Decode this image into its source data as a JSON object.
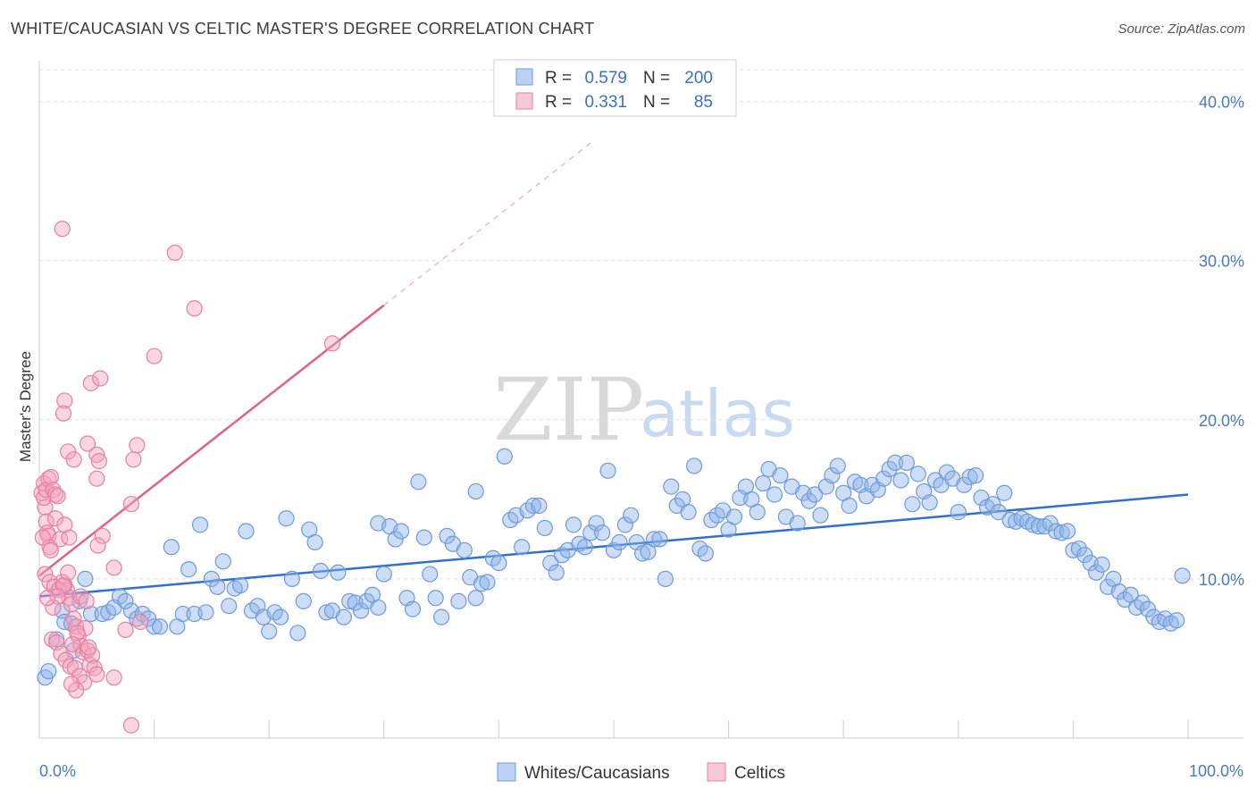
{
  "title": "WHITE/CAUCASIAN VS CELTIC MASTER'S DEGREE CORRELATION CHART",
  "source": "Source: ZipAtlas.com",
  "watermark": {
    "zip": "ZIP",
    "atlas": "atlas"
  },
  "chart_data": {
    "type": "scatter",
    "ylabel": "Master's Degree",
    "xlabel": "",
    "xlim": [
      0,
      100
    ],
    "ylim": [
      0,
      42
    ],
    "x_tick_labels": {
      "left": "0.0%",
      "right": "100.0%"
    },
    "y_ticks": [
      {
        "value": 10,
        "label": "10.0%"
      },
      {
        "value": 20,
        "label": "20.0%"
      },
      {
        "value": 30,
        "label": "30.0%"
      },
      {
        "value": 40,
        "label": "40.0%"
      }
    ],
    "grid": true,
    "legend": {
      "placement": "top-center",
      "entries": [
        {
          "r_label": "R =",
          "r_value": "0.579",
          "n_label": "N =",
          "n_value": "200",
          "color": "#8fb3e8"
        },
        {
          "r_label": "R =",
          "r_value": "0.331",
          "n_label": "N =",
          "n_value": "85",
          "color": "#f2a5bd"
        }
      ]
    },
    "series": [
      {
        "name": "Whites/Caucasians",
        "color": "#8fb3e8",
        "stroke": "#6f9ad8",
        "trend": {
          "x0": 0,
          "y0": 8.9,
          "x1": 100,
          "y1": 15.3,
          "color": "#2e6fd0"
        },
        "points": [
          [
            0.5,
            3.8
          ],
          [
            0.8,
            4.2
          ],
          [
            1.5,
            6.2
          ],
          [
            2,
            8
          ],
          [
            2.2,
            7.3
          ],
          [
            2.8,
            7.2
          ],
          [
            3,
            5.5
          ],
          [
            3.5,
            8.6
          ],
          [
            4,
            10
          ],
          [
            4.5,
            7.8
          ],
          [
            5.5,
            7.8
          ],
          [
            6,
            7.9
          ],
          [
            6.5,
            8.2
          ],
          [
            7,
            8.9
          ],
          [
            7.5,
            8.6
          ],
          [
            8,
            8
          ],
          [
            8.5,
            7.5
          ],
          [
            9,
            7.8
          ],
          [
            9.5,
            7.5
          ],
          [
            10,
            7
          ],
          [
            10.5,
            7
          ],
          [
            11.5,
            12
          ],
          [
            12,
            7
          ],
          [
            12.5,
            7.8
          ],
          [
            13,
            10.6
          ],
          [
            13.5,
            7.8
          ],
          [
            14,
            13.4
          ],
          [
            14.5,
            7.9
          ],
          [
            15,
            10
          ],
          [
            15.5,
            9.5
          ],
          [
            16,
            11.1
          ],
          [
            16.5,
            8.3
          ],
          [
            17,
            9.4
          ],
          [
            17.5,
            9.6
          ],
          [
            18,
            13
          ],
          [
            18.5,
            8
          ],
          [
            19,
            8.3
          ],
          [
            19.5,
            7.6
          ],
          [
            20,
            6.7
          ],
          [
            20.5,
            7.9
          ],
          [
            21,
            7.6
          ],
          [
            21.5,
            13.8
          ],
          [
            22,
            10
          ],
          [
            22.5,
            6.6
          ],
          [
            23,
            8.6
          ],
          [
            23.5,
            13.1
          ],
          [
            24,
            12.3
          ],
          [
            24.5,
            10.5
          ],
          [
            25,
            7.9
          ],
          [
            25.5,
            8
          ],
          [
            26,
            10.4
          ],
          [
            26.5,
            7.6
          ],
          [
            27,
            8.6
          ],
          [
            27.5,
            8.5
          ],
          [
            28,
            8
          ],
          [
            28.5,
            8.6
          ],
          [
            29,
            9
          ],
          [
            29.5,
            13.5
          ],
          [
            30,
            10.3
          ],
          [
            30.5,
            13.3
          ],
          [
            31,
            12.5
          ],
          [
            31.5,
            13
          ],
          [
            32,
            8.8
          ],
          [
            32.5,
            8.1
          ],
          [
            33,
            16.1
          ],
          [
            33.5,
            12.6
          ],
          [
            34,
            10.3
          ],
          [
            34.5,
            8.8
          ],
          [
            35,
            7.6
          ],
          [
            35.5,
            12.7
          ],
          [
            36,
            12.2
          ],
          [
            36.5,
            8.6
          ],
          [
            37,
            11.8
          ],
          [
            37.5,
            10.1
          ],
          [
            38,
            15.5
          ],
          [
            38.5,
            9.7
          ],
          [
            39,
            9.8
          ],
          [
            39.5,
            11.3
          ],
          [
            40,
            11
          ],
          [
            40.5,
            17.7
          ],
          [
            41,
            13.7
          ],
          [
            41.5,
            14
          ],
          [
            42,
            12
          ],
          [
            42.5,
            14.3
          ],
          [
            43,
            14.6
          ],
          [
            43.5,
            14.6
          ],
          [
            44,
            13.2
          ],
          [
            44.5,
            11
          ],
          [
            45,
            10.4
          ],
          [
            45.5,
            11.5
          ],
          [
            46,
            11.8
          ],
          [
            46.5,
            13.4
          ],
          [
            47,
            12.2
          ],
          [
            47.5,
            12
          ],
          [
            48,
            12.9
          ],
          [
            48.5,
            13.5
          ],
          [
            49,
            12.9
          ],
          [
            49.5,
            16.8
          ],
          [
            50,
            11.8
          ],
          [
            50.5,
            12.3
          ],
          [
            51,
            13.4
          ],
          [
            51.5,
            14
          ],
          [
            52,
            12.3
          ],
          [
            52.5,
            11.6
          ],
          [
            53,
            11.7
          ],
          [
            53.5,
            12.5
          ],
          [
            54,
            12.5
          ],
          [
            54.5,
            10
          ],
          [
            55,
            15.8
          ],
          [
            55.5,
            14.6
          ],
          [
            56,
            15
          ],
          [
            56.5,
            14.2
          ],
          [
            57,
            17.1
          ],
          [
            57.5,
            11.9
          ],
          [
            58,
            11.6
          ],
          [
            58.5,
            13.7
          ],
          [
            59,
            14
          ],
          [
            59.5,
            14.3
          ],
          [
            60,
            13.1
          ],
          [
            60.5,
            13.9
          ],
          [
            61,
            15.1
          ],
          [
            61.5,
            15.8
          ],
          [
            62,
            15
          ],
          [
            62.5,
            14.2
          ],
          [
            63,
            16
          ],
          [
            63.5,
            16.9
          ],
          [
            64,
            15.3
          ],
          [
            64.5,
            16.5
          ],
          [
            65,
            13.9
          ],
          [
            65.5,
            15.8
          ],
          [
            66,
            13.5
          ],
          [
            66.5,
            15.4
          ],
          [
            67,
            14.9
          ],
          [
            67.5,
            15.3
          ],
          [
            68,
            14
          ],
          [
            68.5,
            15.8
          ],
          [
            69,
            16.5
          ],
          [
            69.5,
            17.1
          ],
          [
            70,
            15.4
          ],
          [
            70.5,
            14.6
          ],
          [
            71,
            16.1
          ],
          [
            71.5,
            15.9
          ],
          [
            72,
            15.2
          ],
          [
            72.5,
            15.9
          ],
          [
            73,
            15.6
          ],
          [
            73.5,
            16.3
          ],
          [
            74,
            16.9
          ],
          [
            74.5,
            17.3
          ],
          [
            75,
            16.2
          ],
          [
            75.5,
            17.3
          ],
          [
            76,
            14.7
          ],
          [
            76.5,
            16.6
          ],
          [
            77,
            15.5
          ],
          [
            77.5,
            14.8
          ],
          [
            78,
            16.2
          ],
          [
            78.5,
            15.9
          ],
          [
            79,
            16.7
          ],
          [
            79.5,
            16.3
          ],
          [
            80,
            14.2
          ],
          [
            80.5,
            15.9
          ],
          [
            81,
            16.4
          ],
          [
            81.5,
            16.5
          ],
          [
            82,
            15.1
          ],
          [
            82.5,
            14.5
          ],
          [
            83,
            14.7
          ],
          [
            83.5,
            14.2
          ],
          [
            84,
            15.4
          ],
          [
            84.5,
            13.7
          ],
          [
            85,
            13.6
          ],
          [
            85.5,
            13.8
          ],
          [
            86,
            13.6
          ],
          [
            86.5,
            13.4
          ],
          [
            87,
            13.3
          ],
          [
            87.5,
            13.3
          ],
          [
            88,
            13.5
          ],
          [
            88.5,
            13
          ],
          [
            89,
            12.9
          ],
          [
            89.5,
            13
          ],
          [
            90,
            11.8
          ],
          [
            90.5,
            11.9
          ],
          [
            91,
            11.5
          ],
          [
            91.5,
            11
          ],
          [
            92,
            10.4
          ],
          [
            92.5,
            10.9
          ],
          [
            93,
            9.5
          ],
          [
            93.5,
            10
          ],
          [
            94,
            9.2
          ],
          [
            94.5,
            8.7
          ],
          [
            95,
            9
          ],
          [
            95.5,
            8.2
          ],
          [
            96,
            8.5
          ],
          [
            96.5,
            8.1
          ],
          [
            97,
            7.6
          ],
          [
            97.5,
            7.3
          ],
          [
            98,
            7.5
          ],
          [
            98.5,
            7.2
          ],
          [
            99,
            7.4
          ],
          [
            99.5,
            10.2
          ],
          [
            38,
            8.8
          ],
          [
            29.5,
            8.2
          ]
        ]
      },
      {
        "name": "Celtics",
        "color": "#f2a5bd",
        "stroke": "#e87fa0",
        "trend": {
          "x0": 0,
          "y0": 10.2,
          "x1": 30,
          "y1": 27.2,
          "color": "#e0608a"
        },
        "trend_extension": {
          "x0": 30,
          "y0": 27.2,
          "x1": 48,
          "y1": 37.4
        },
        "points": [
          [
            0.2,
            15.4
          ],
          [
            0.4,
            16
          ],
          [
            0.5,
            14.5
          ],
          [
            0.6,
            13.6
          ],
          [
            0.7,
            12.9
          ],
          [
            0.8,
            12.7
          ],
          [
            0.9,
            12
          ],
          [
            1,
            11.8
          ],
          [
            0.3,
            12.6
          ],
          [
            0.4,
            15.1
          ],
          [
            0.6,
            15.6
          ],
          [
            0.8,
            16.3
          ],
          [
            1,
            16.4
          ],
          [
            1.2,
            15.6
          ],
          [
            1.4,
            15.3
          ],
          [
            1.6,
            15.2
          ],
          [
            1.8,
            12.5
          ],
          [
            2,
            9.8
          ],
          [
            2.2,
            9.6
          ],
          [
            2.4,
            9.3
          ],
          [
            2.6,
            8.8
          ],
          [
            2.8,
            8.4
          ],
          [
            3,
            7.5
          ],
          [
            3.2,
            7
          ],
          [
            3.4,
            6.4
          ],
          [
            3.6,
            5.8
          ],
          [
            3.8,
            5.4
          ],
          [
            4,
            6.9
          ],
          [
            4.2,
            5.5
          ],
          [
            4.4,
            4.6
          ],
          [
            4.6,
            5.2
          ],
          [
            4.8,
            4.4
          ],
          [
            5,
            4
          ],
          [
            0.5,
            10.3
          ],
          [
            0.9,
            9.8
          ],
          [
            1.3,
            9.5
          ],
          [
            1.7,
            9.3
          ],
          [
            2.1,
            9.6
          ],
          [
            2.5,
            10.4
          ],
          [
            1.1,
            6.2
          ],
          [
            1.5,
            6
          ],
          [
            1.9,
            5.3
          ],
          [
            2.3,
            4.9
          ],
          [
            2.7,
            4.5
          ],
          [
            3.1,
            4.4
          ],
          [
            3.5,
            3.9
          ],
          [
            3.9,
            3.5
          ],
          [
            2,
            32
          ],
          [
            2.2,
            21.2
          ],
          [
            2.1,
            20.4
          ],
          [
            2.5,
            18
          ],
          [
            3,
            17.5
          ],
          [
            4.2,
            18.5
          ],
          [
            4.5,
            22.3
          ],
          [
            5.3,
            22.6
          ],
          [
            5,
            17.8
          ],
          [
            5.2,
            17.4
          ],
          [
            5.5,
            12.7
          ],
          [
            5.1,
            12.1
          ],
          [
            5,
            16.3
          ],
          [
            6.5,
            10.7
          ],
          [
            7.5,
            6.8
          ],
          [
            8,
            14.7
          ],
          [
            8.2,
            17.5
          ],
          [
            8.5,
            18.4
          ],
          [
            8.8,
            7.3
          ],
          [
            10,
            24
          ],
          [
            11.8,
            30.5
          ],
          [
            13.5,
            27
          ],
          [
            25.5,
            24.8
          ],
          [
            6.5,
            3.8
          ],
          [
            8,
            0.8
          ],
          [
            3.2,
            3
          ],
          [
            2.8,
            3.4
          ],
          [
            1.6,
            8.9
          ],
          [
            2.6,
            12.6
          ],
          [
            1.4,
            13.8
          ],
          [
            2.2,
            13.4
          ],
          [
            3.6,
            8.9
          ],
          [
            4.3,
            5.7
          ],
          [
            3.3,
            6.6
          ],
          [
            2.9,
            5.9
          ],
          [
            1.2,
            8.2
          ],
          [
            0.7,
            8.8
          ],
          [
            4.1,
            8.6
          ]
        ]
      }
    ]
  }
}
